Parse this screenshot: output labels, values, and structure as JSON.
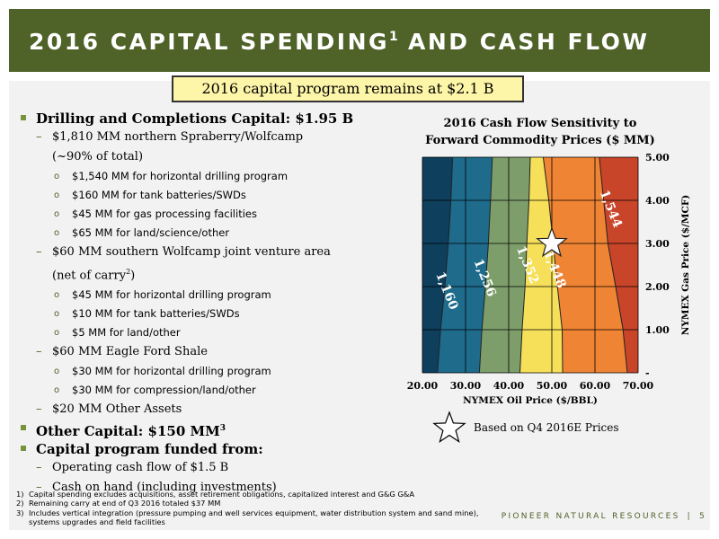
{
  "header": {
    "title": "2016 CAPITAL SPENDING",
    "title_sup": "1",
    "title_tail": " AND CASH FLOW"
  },
  "banner": {
    "text": "2016 capital program remains at $2.1 B"
  },
  "bullets": {
    "drilling": "Drilling and Completions Capital: $1.95 B",
    "spraberry": "$1,810 MM northern Spraberry/Wolfcamp",
    "spraberry_cont": "(~90% of total)",
    "spraberry_items": [
      "$1,540 MM for horizontal drilling program",
      "$160 MM for tank batteries/SWDs",
      "$45 MM for gas processing facilities",
      "$65 MM for land/science/other"
    ],
    "southern": "$60 MM southern Wolfcamp joint venture area",
    "southern_cont": "(net of carry",
    "southern_cont_sup": "2",
    "southern_cont_tail": ")",
    "southern_items": [
      "$45 MM for horizontal drilling program",
      "$10 MM for tank batteries/SWDs",
      "$5 MM for land/other"
    ],
    "eagle": "$60 MM Eagle Ford Shale",
    "eagle_items": [
      "$30 MM for horizontal drilling program",
      "$30 MM for compression/land/other"
    ],
    "other_assets": "$20 MM Other Assets",
    "other_capital": "Other Capital: $150 MM",
    "other_capital_sup": "3",
    "funded": "Capital program funded from:",
    "funded_items": [
      "Operating cash flow of $1.5 B",
      "Cash on hand (including investments)"
    ]
  },
  "footnotes": [
    {
      "num": "1)",
      "text": "Capital spending excludes acquisitions, asset retirement obligations, capitalized interest and G&G G&A"
    },
    {
      "num": "2)",
      "text": "Remaining carry at end of Q3 2016 totaled $37 MM"
    },
    {
      "num": "3)",
      "text": "Includes vertical integration (pressure pumping and well services equipment, water distribution system and sand mine), systems upgrades and field facilities"
    }
  ],
  "brand": {
    "text": "PIONEER NATURAL RESOURCES",
    "page": "5"
  },
  "colors": {
    "header_bg": "#4f6228",
    "banner_bg": "#fdf5a8",
    "bullet": "#77933c"
  },
  "chart_data": {
    "type": "heatmap",
    "title_line1": "2016 Cash Flow Sensitivity to",
    "title_line2": "Forward Commodity Prices ($ MM)",
    "xlabel": "NYMEX Oil Price ($/BBL)",
    "ylabel": "NYMEX Gas Price ($/MCF)",
    "x_ticks": [
      "20.00",
      "30.00",
      "40.00",
      "50.00",
      "60.00",
      "70.00"
    ],
    "y_ticks": [
      "5.00",
      "4.00",
      "3.00",
      "2.00",
      "1.00",
      "-"
    ],
    "xlim": [
      20,
      70
    ],
    "ylim": [
      0,
      5
    ],
    "contours": [
      {
        "label": "1,160",
        "color": "#1e6b8c",
        "points": [
          [
            23.5,
            0
          ],
          [
            24.2,
            1
          ],
          [
            25.2,
            2
          ],
          [
            26,
            3
          ],
          [
            26.6,
            4
          ],
          [
            27,
            5
          ]
        ],
        "label_at": [
          25.6,
          1.9
        ]
      },
      {
        "label": "1,256",
        "color": "#7d9e6b",
        "points": [
          [
            33.2,
            0
          ],
          [
            33.8,
            1
          ],
          [
            34.6,
            2
          ],
          [
            35.3,
            3
          ],
          [
            35.8,
            4
          ],
          [
            36.2,
            5
          ]
        ],
        "label_at": [
          34.4,
          2.2
        ]
      },
      {
        "label": "1,352",
        "color": "#f6e05a",
        "points": [
          [
            42.6,
            0
          ],
          [
            43.1,
            1
          ],
          [
            43.8,
            2
          ],
          [
            44.2,
            3
          ],
          [
            44.7,
            4
          ],
          [
            45,
            5
          ]
        ],
        "label_at": [
          44.3,
          2.5
        ]
      },
      {
        "label": "1,448",
        "color": "#ee8434",
        "points": [
          [
            52.5,
            0
          ],
          [
            52.4,
            1
          ],
          [
            51.3,
            2
          ],
          [
            50.3,
            3
          ],
          [
            49.3,
            4
          ],
          [
            48,
            5
          ]
        ],
        "label_at": [
          50.6,
          2.4
        ]
      },
      {
        "label": "1,544",
        "color": "#c8452a",
        "points": [
          [
            67.5,
            0
          ],
          [
            66.5,
            1
          ],
          [
            64.8,
            2
          ],
          [
            63,
            3
          ],
          [
            62,
            4
          ],
          [
            61,
            5
          ]
        ],
        "label_at": [
          63.6,
          3.8
        ]
      }
    ],
    "base_color": "#0e3f5c",
    "marker": {
      "x": 50,
      "y": 3,
      "label": "Based on Q4 2016E Prices"
    }
  }
}
